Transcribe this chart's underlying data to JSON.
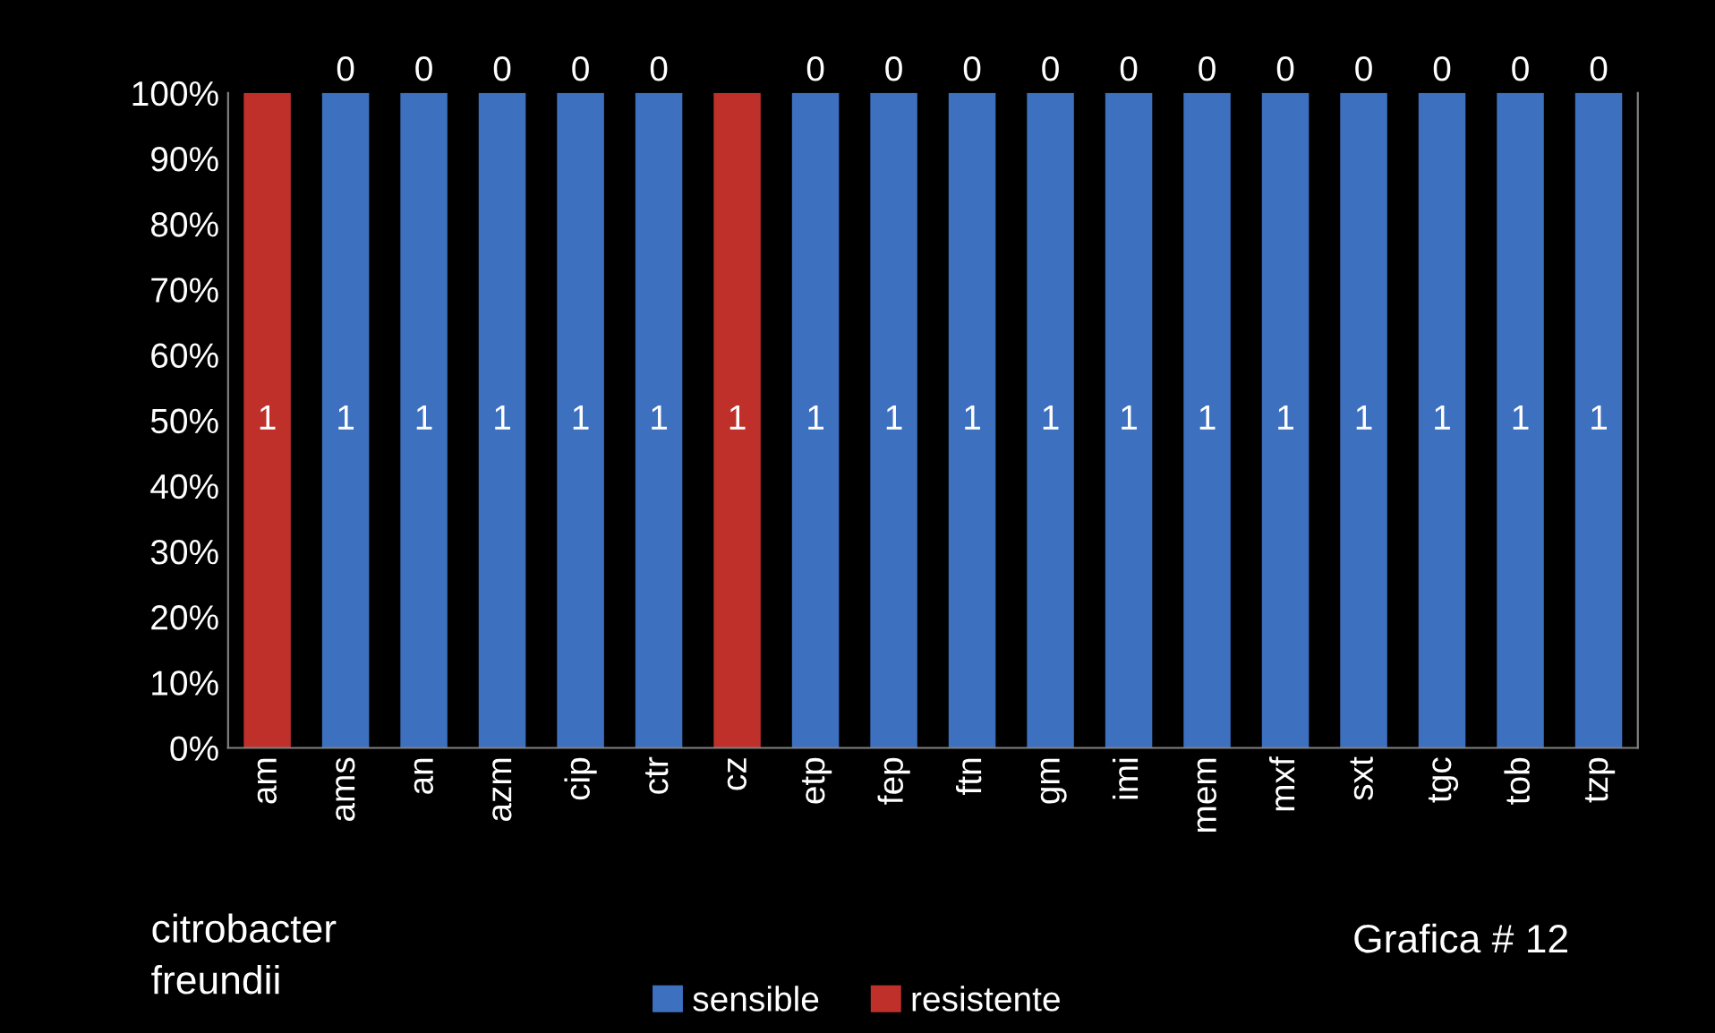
{
  "chart_data": {
    "type": "bar",
    "stacked": true,
    "categories": [
      "am",
      "ams",
      "an",
      "azm",
      "cip",
      "ctr",
      "cz",
      "etp",
      "fep",
      "ftn",
      "gm",
      "imi",
      "mem",
      "mxf",
      "sxt",
      "tgc",
      "tob",
      "tzp"
    ],
    "series": [
      {
        "name": "sensible",
        "color": "#3e70c0",
        "values": [
          0,
          1,
          1,
          1,
          1,
          1,
          0,
          1,
          1,
          1,
          1,
          1,
          1,
          1,
          1,
          1,
          1,
          1
        ],
        "value_labels": [
          null,
          "1",
          "1",
          "1",
          "1",
          "1",
          null,
          "1",
          "1",
          "1",
          "1",
          "1",
          "1",
          "1",
          "1",
          "1",
          "1",
          "1"
        ]
      },
      {
        "name": "resistente",
        "color": "#c0302b",
        "values": [
          1,
          0,
          0,
          0,
          0,
          0,
          1,
          0,
          0,
          0,
          0,
          0,
          0,
          0,
          0,
          0,
          0,
          0
        ],
        "value_labels": [
          "1",
          "0",
          "0",
          "0",
          "0",
          "0",
          "1",
          "0",
          "0",
          "0",
          "0",
          "0",
          "0",
          "0",
          "0",
          "0",
          "0",
          "0"
        ]
      }
    ],
    "ylim": [
      0,
      1
    ],
    "yticks": [
      {
        "value": 0,
        "label": "0%"
      },
      {
        "value": 0.1,
        "label": "10%"
      },
      {
        "value": 0.2,
        "label": "20%"
      },
      {
        "value": 0.3,
        "label": "30%"
      },
      {
        "value": 0.4,
        "label": "40%"
      },
      {
        "value": 0.5,
        "label": "50%"
      },
      {
        "value": 0.6,
        "label": "60%"
      },
      {
        "value": 0.7,
        "label": "70%"
      },
      {
        "value": 0.8,
        "label": "80%"
      },
      {
        "value": 0.9,
        "label": "90%"
      },
      {
        "value": 1,
        "label": "100%"
      }
    ],
    "legend": "bottom",
    "annotations": [
      "citrobacter\nfreundii",
      "Grafica # 12"
    ]
  }
}
